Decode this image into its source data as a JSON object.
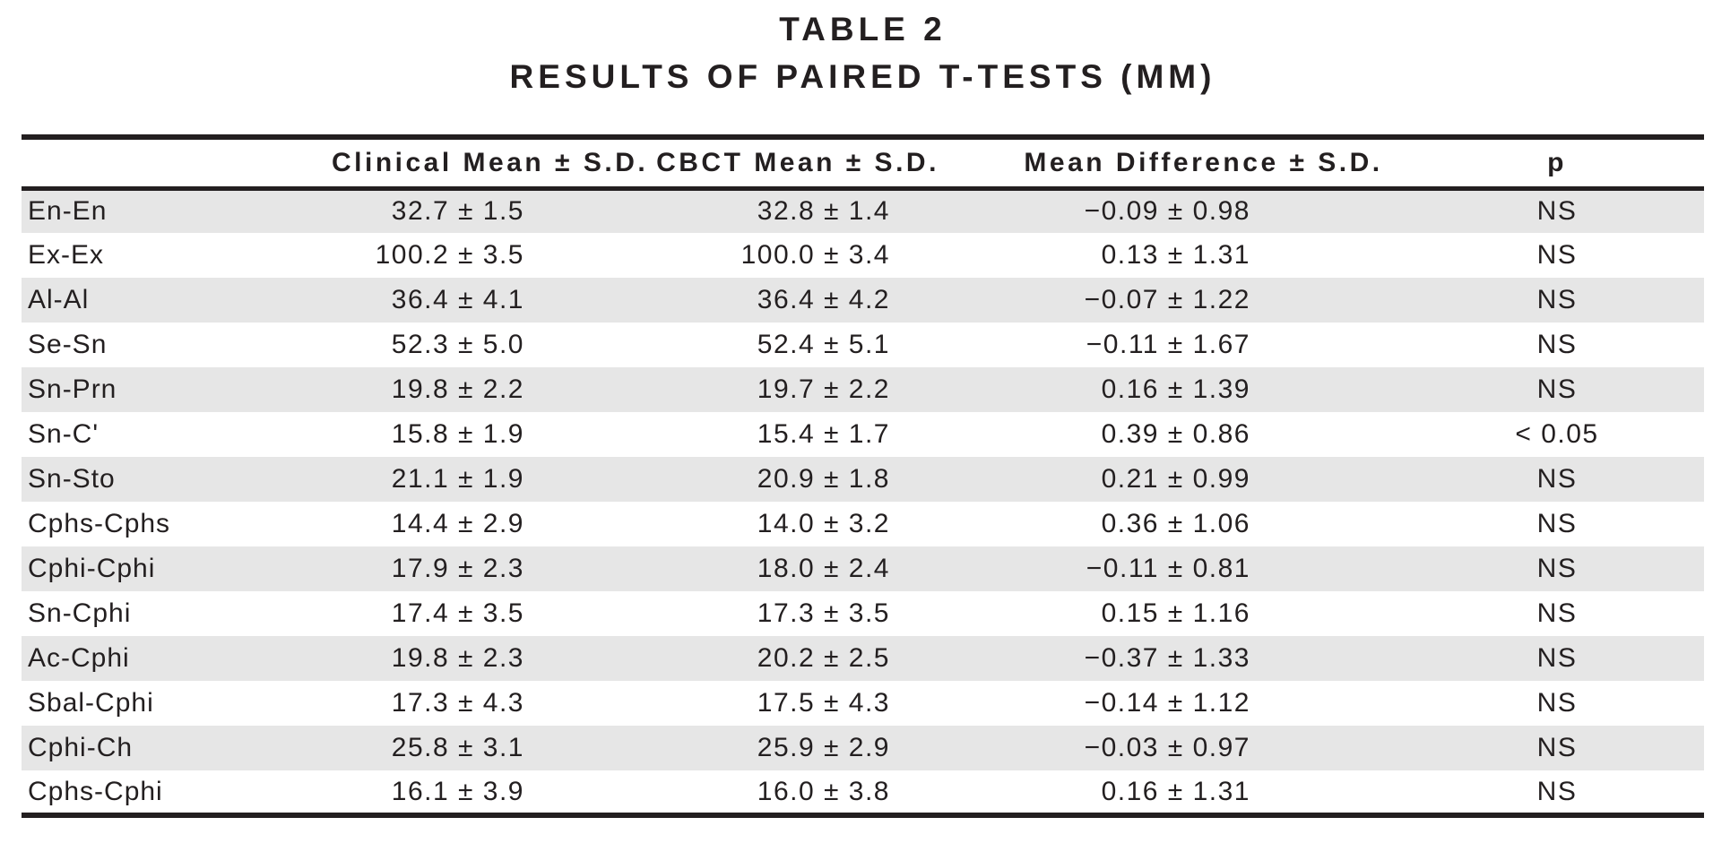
{
  "title": {
    "line1": "TABLE 2",
    "line2": "RESULTS OF PAIRED T-TESTS (MM)"
  },
  "table": {
    "columns": [
      "",
      "Clinical Mean ± S.D.",
      "CBCT Mean ± S.D.",
      "Mean Difference ± S.D.",
      "p"
    ],
    "rows": [
      {
        "label": "En-En",
        "clinical": "32.7 ± 1.5",
        "cbct": "32.8 ± 1.4",
        "diff": "−0.09 ± 0.98",
        "p": "NS"
      },
      {
        "label": "Ex-Ex",
        "clinical": "100.2 ± 3.5",
        "cbct": "100.0 ± 3.4",
        "diff": "0.13 ± 1.31",
        "p": "NS"
      },
      {
        "label": "Al-Al",
        "clinical": "36.4 ± 4.1",
        "cbct": "36.4 ± 4.2",
        "diff": "−0.07 ± 1.22",
        "p": "NS"
      },
      {
        "label": "Se-Sn",
        "clinical": "52.3 ± 5.0",
        "cbct": "52.4 ± 5.1",
        "diff": "−0.11 ± 1.67",
        "p": "NS"
      },
      {
        "label": "Sn-Prn",
        "clinical": "19.8 ± 2.2",
        "cbct": "19.7 ± 2.2",
        "diff": "0.16 ± 1.39",
        "p": "NS"
      },
      {
        "label": "Sn-C'",
        "clinical": "15.8 ± 1.9",
        "cbct": "15.4 ± 1.7",
        "diff": "0.39 ± 0.86",
        "p": "< 0.05"
      },
      {
        "label": "Sn-Sto",
        "clinical": "21.1 ± 1.9",
        "cbct": "20.9 ± 1.8",
        "diff": "0.21 ± 0.99",
        "p": "NS"
      },
      {
        "label": "Cphs-Cphs",
        "clinical": "14.4 ± 2.9",
        "cbct": "14.0 ± 3.2",
        "diff": "0.36 ± 1.06",
        "p": "NS"
      },
      {
        "label": "Cphi-Cphi",
        "clinical": "17.9 ± 2.3",
        "cbct": "18.0 ± 2.4",
        "diff": "−0.11 ± 0.81",
        "p": "NS"
      },
      {
        "label": "Sn-Cphi",
        "clinical": "17.4 ± 3.5",
        "cbct": "17.3 ± 3.5",
        "diff": "0.15 ± 1.16",
        "p": "NS"
      },
      {
        "label": "Ac-Cphi",
        "clinical": "19.8 ± 2.3",
        "cbct": "20.2 ± 2.5",
        "diff": "−0.37 ± 1.33",
        "p": "NS"
      },
      {
        "label": "Sbal-Cphi",
        "clinical": "17.3 ± 4.3",
        "cbct": "17.5 ± 4.3",
        "diff": "−0.14 ± 1.12",
        "p": "NS"
      },
      {
        "label": "Cphi-Ch",
        "clinical": "25.8 ± 3.1",
        "cbct": "25.9 ± 2.9",
        "diff": "−0.03 ± 0.97",
        "p": "NS"
      },
      {
        "label": "Cphs-Cphi",
        "clinical": "16.1 ± 3.9",
        "cbct": "16.0 ± 3.8",
        "diff": "0.16 ± 1.31",
        "p": "NS"
      }
    ]
  },
  "colors": {
    "stripe": "#e6e6e6",
    "rule": "#231f20",
    "text": "#231f20"
  }
}
